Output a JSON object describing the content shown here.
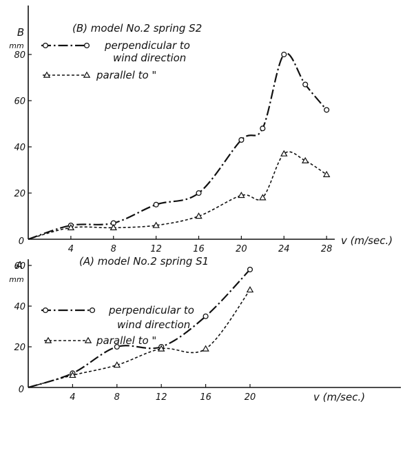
{
  "chart_data": [
    {
      "type": "line",
      "title": "(B) model No.2 spring S2",
      "ylabel": "B",
      "yunit": "mm",
      "xlabel": "v (m/sec.)",
      "xlim": [
        0,
        29
      ],
      "ylim": [
        0,
        90
      ],
      "xticks": [
        4,
        8,
        12,
        16,
        20,
        24,
        28
      ],
      "yticks": [
        20,
        40,
        60,
        80
      ],
      "origin_label": "0",
      "grid": false,
      "legend_position": "top-left",
      "series": [
        {
          "name": "perpendicular to wind direction",
          "legend_lines": [
            "perpendicular to",
            "wind direction"
          ],
          "style": "dash-dot",
          "marker": "circle",
          "x": [
            0,
            4,
            8,
            12,
            16,
            20,
            22,
            24,
            26,
            28
          ],
          "y": [
            0,
            6,
            7,
            15,
            20,
            43,
            48,
            80,
            67,
            56
          ]
        },
        {
          "name": "parallel to \"",
          "legend_lines": [
            "parallel to  \""
          ],
          "style": "dashed",
          "marker": "triangle",
          "x": [
            0,
            4,
            8,
            12,
            16,
            20,
            22,
            24,
            26,
            28
          ],
          "y": [
            0,
            5,
            5,
            6,
            10,
            19,
            18,
            37,
            34,
            28
          ]
        }
      ]
    },
    {
      "type": "line",
      "title": "(A) model No.2 spring S1",
      "ylabel": "A",
      "yunit": "mm",
      "xlabel": "v (m/sec.)",
      "xlim": [
        0,
        30
      ],
      "ylim": [
        0,
        75
      ],
      "xticks": [
        4,
        8,
        12,
        16,
        20
      ],
      "yticks": [
        20,
        40,
        60
      ],
      "origin_label": "0",
      "grid": false,
      "legend_position": "top-left",
      "series": [
        {
          "name": "perpendicular to wind direction",
          "legend_lines": [
            "perpendicular to",
            "wind direction"
          ],
          "style": "dash-dot",
          "marker": "circle",
          "x": [
            0,
            4,
            8,
            12,
            16,
            20
          ],
          "y": [
            0,
            7,
            20,
            20,
            35,
            58
          ]
        },
        {
          "name": "parallel to \"",
          "legend_lines": [
            "parallel to  \""
          ],
          "style": "dashed",
          "marker": "triangle",
          "x": [
            0,
            4,
            8,
            12,
            16,
            20
          ],
          "y": [
            0,
            6,
            11,
            19,
            19,
            48
          ]
        }
      ]
    }
  ]
}
